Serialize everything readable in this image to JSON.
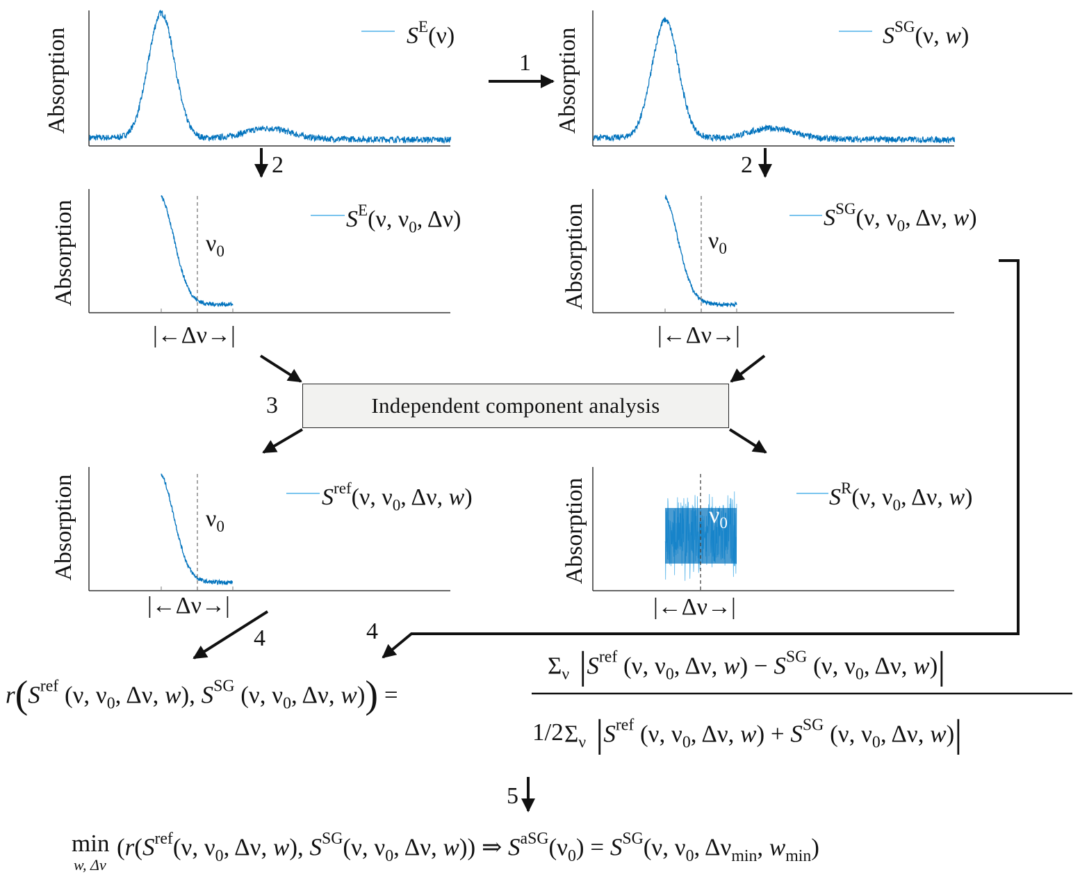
{
  "colors": {
    "curve": "#0072bd",
    "curve_light": "#4db0e8",
    "axis": "#333333",
    "arrow": "#111111",
    "box_fill": "#f2f2f0"
  },
  "axis_label": "Absorption",
  "step_labels": {
    "s1": "1",
    "s2a": "2",
    "s2b": "2",
    "s3": "3",
    "s4a": "4",
    "s4b": "4",
    "s5": "5"
  },
  "ica_box": "Independent component analysis",
  "delta_marker": "|←Δν→|",
  "nu0": [
    [
      "ν",
      ""
    ],
    [
      "0",
      "sub"
    ]
  ],
  "legends": {
    "p1": [
      [
        "S",
        "i"
      ],
      [
        "E",
        "sup"
      ],
      [
        "(ν)",
        ""
      ]
    ],
    "p2": [
      [
        "S",
        "i"
      ],
      [
        "SG",
        "sup"
      ],
      [
        "(ν, ",
        ""
      ],
      [
        "w",
        "i"
      ],
      [
        ")",
        ""
      ]
    ],
    "p3": [
      [
        "S",
        "i"
      ],
      [
        "E",
        "sup"
      ],
      [
        "(ν, ν",
        ""
      ],
      [
        "0",
        "sub"
      ],
      [
        ", Δν)",
        ""
      ]
    ],
    "p4": [
      [
        "S",
        "i"
      ],
      [
        "SG",
        "sup"
      ],
      [
        "(ν, ν",
        ""
      ],
      [
        "0",
        "sub"
      ],
      [
        ", Δν, ",
        ""
      ],
      [
        "w",
        "i"
      ],
      [
        ")",
        ""
      ]
    ],
    "p5": [
      [
        "S",
        "i"
      ],
      [
        "ref",
        "sup"
      ],
      [
        "(ν, ν",
        ""
      ],
      [
        "0",
        "sub"
      ],
      [
        ", Δν, ",
        ""
      ],
      [
        "w",
        "i"
      ],
      [
        ")",
        ""
      ]
    ],
    "p6": [
      [
        "S",
        "i"
      ],
      [
        "R",
        "sup"
      ],
      [
        "(ν, ν",
        ""
      ],
      [
        "0",
        "sub"
      ],
      [
        ", Δν, ",
        ""
      ],
      [
        "w",
        "i"
      ],
      [
        ")",
        ""
      ]
    ]
  },
  "formula": {
    "lhs": [
      [
        "r",
        "i"
      ],
      [
        "(",
        "big"
      ],
      [
        "S",
        "i"
      ],
      [
        "ref",
        "sup"
      ],
      [
        " (ν, ν",
        ""
      ],
      [
        "0",
        "sub"
      ],
      [
        ", Δν, ",
        ""
      ],
      [
        "w",
        "i"
      ],
      [
        "), ",
        ""
      ],
      [
        "S",
        "i"
      ],
      [
        "SG",
        "sup"
      ],
      [
        " (ν, ν",
        ""
      ],
      [
        "0",
        "sub"
      ],
      [
        ", Δν, ",
        ""
      ],
      [
        "w",
        "i"
      ],
      [
        ")",
        ""
      ],
      [
        ")",
        "big"
      ],
      [
        " =",
        ""
      ]
    ],
    "numerator": [
      [
        "Σ",
        ""
      ],
      [
        "ν",
        "sub"
      ],
      [
        " |",
        "big"
      ],
      [
        "S",
        "i"
      ],
      [
        "ref",
        "sup"
      ],
      [
        " (ν, ν",
        ""
      ],
      [
        "0",
        "sub"
      ],
      [
        ", Δν, ",
        ""
      ],
      [
        "w",
        "i"
      ],
      [
        ") − ",
        ""
      ],
      [
        "S",
        "i"
      ],
      [
        "SG",
        "sup"
      ],
      [
        " (ν, ν",
        ""
      ],
      [
        "0",
        "sub"
      ],
      [
        ", Δν, ",
        ""
      ],
      [
        "w",
        "i"
      ],
      [
        ")",
        ""
      ],
      [
        "|",
        "big"
      ]
    ],
    "half": "1/2",
    "denominator": [
      [
        "Σ",
        ""
      ],
      [
        "ν",
        "sub"
      ],
      [
        " |",
        "big"
      ],
      [
        "S",
        "i"
      ],
      [
        "ref",
        "sup"
      ],
      [
        " (ν, ν",
        ""
      ],
      [
        "0",
        "sub"
      ],
      [
        ", Δν, ",
        ""
      ],
      [
        "w",
        "i"
      ],
      [
        ") + ",
        ""
      ],
      [
        "S",
        "i"
      ],
      [
        "SG",
        "sup"
      ],
      [
        " (ν, ν",
        ""
      ],
      [
        "0",
        "sub"
      ],
      [
        ", Δν, ",
        ""
      ],
      [
        "w",
        "i"
      ],
      [
        ")",
        ""
      ],
      [
        "|",
        "big"
      ]
    ],
    "min_word": "min",
    "min_under": "w, Δν",
    "result": [
      [
        "(",
        ""
      ],
      [
        "r",
        "i"
      ],
      [
        "(",
        ""
      ],
      [
        "S",
        "i"
      ],
      [
        "ref",
        "sup"
      ],
      [
        "(ν, ν",
        ""
      ],
      [
        "0",
        "sub"
      ],
      [
        ", Δν, ",
        ""
      ],
      [
        "w",
        "i"
      ],
      [
        "), ",
        ""
      ],
      [
        "S",
        "i"
      ],
      [
        "SG",
        "sup"
      ],
      [
        "(ν, ν",
        ""
      ],
      [
        "0",
        "sub"
      ],
      [
        ", Δν, ",
        ""
      ],
      [
        "w",
        "i"
      ],
      [
        ")) ⇒ ",
        ""
      ],
      [
        "S",
        "i"
      ],
      [
        "a",
        "sup"
      ],
      [
        "SG",
        "sup"
      ],
      [
        "(ν",
        ""
      ],
      [
        "0",
        "sub"
      ],
      [
        ") = ",
        ""
      ],
      [
        "S",
        "i"
      ],
      [
        "SG",
        "sup"
      ],
      [
        "(ν, ν",
        ""
      ],
      [
        "0",
        "sub"
      ],
      [
        ", Δν",
        ""
      ],
      [
        "min",
        "sub"
      ],
      [
        ", ",
        ""
      ],
      [
        "w",
        "i"
      ],
      [
        "min",
        "sub"
      ],
      [
        ")",
        ""
      ]
    ]
  }
}
